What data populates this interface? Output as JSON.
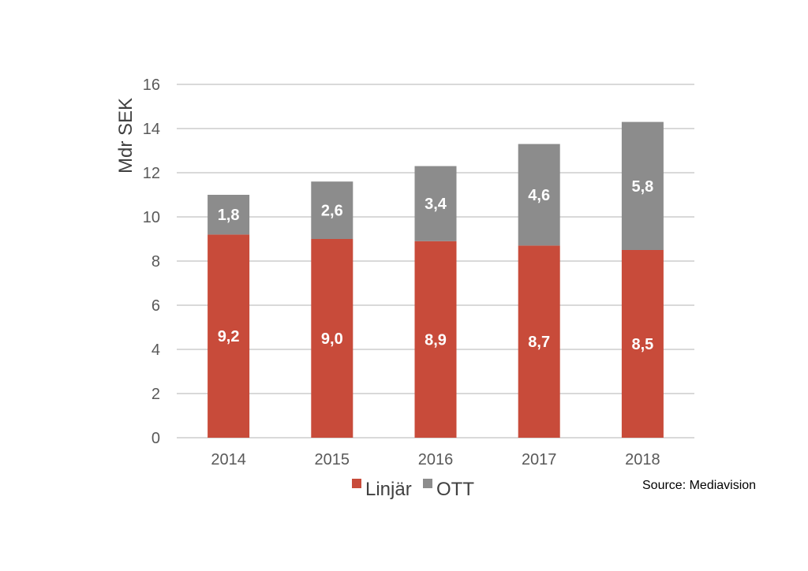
{
  "chart_data": {
    "type": "bar",
    "stacked": true,
    "categories": [
      "2014",
      "2015",
      "2016",
      "2017",
      "2018"
    ],
    "series": [
      {
        "name": "Linjär",
        "values": [
          9.2,
          9.0,
          8.9,
          8.7,
          8.5
        ],
        "labels": [
          "9,2",
          "9,0",
          "8,9",
          "8,7",
          "8,5"
        ],
        "color": "#c84b3a"
      },
      {
        "name": "OTT",
        "values": [
          1.8,
          2.6,
          3.4,
          4.6,
          5.8
        ],
        "labels": [
          "1,8",
          "2,6",
          "3,4",
          "4,6",
          "5,8"
        ],
        "color": "#8c8c8c"
      }
    ],
    "ylabel": "Mdr SEK",
    "ylim": [
      0,
      16
    ],
    "yticks": [
      0,
      2,
      4,
      6,
      8,
      10,
      12,
      14,
      16
    ],
    "grid": true,
    "legend_position": "bottom"
  },
  "source": "Source: Mediavision"
}
